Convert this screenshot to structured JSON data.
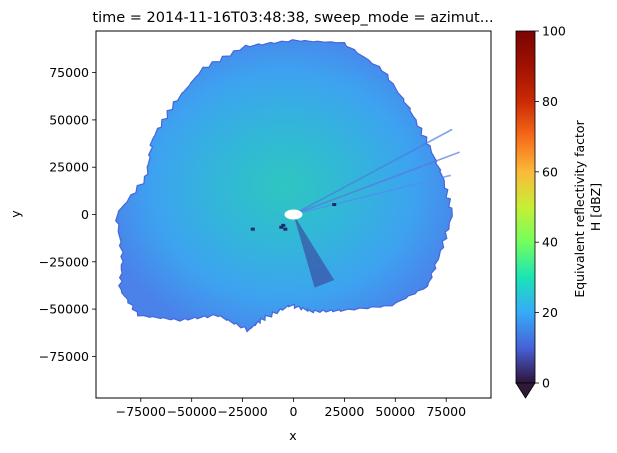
{
  "chart_data": {
    "type": "heatmap",
    "title": "time = 2014-11-16T03:48:38, sweep_mode = azimut...",
    "xlabel": "x",
    "ylabel": "y",
    "xlim": [
      -97000,
      97000
    ],
    "ylim": [
      -97000,
      97000
    ],
    "xticks": [
      -75000,
      -50000,
      -25000,
      0,
      25000,
      50000,
      75000
    ],
    "xtick_labels": [
      "−75000",
      "−50000",
      "−25000",
      "0",
      "25000",
      "50000",
      "75000"
    ],
    "yticks": [
      75000,
      50000,
      25000,
      0,
      -25000,
      -50000,
      -75000
    ],
    "ytick_labels": [
      "75000",
      "50000",
      "25000",
      "0",
      "−25000",
      "−50000",
      "−75000"
    ],
    "grid": false,
    "colorbar": {
      "label_lines": [
        "Equivalent reflectivity factor",
        "H [dBZ]"
      ],
      "range": [
        0,
        100
      ],
      "ticks": [
        0,
        20,
        40,
        60,
        80,
        100
      ],
      "tick_labels": [
        "0",
        "20",
        "40",
        "60",
        "80",
        "100"
      ],
      "colormap": "turbo",
      "extend": "min",
      "under_color": "#2f1a35"
    },
    "field": {
      "name": "Equivalent reflectivity factor H",
      "units": "dBZ",
      "typical_value_dbz": 20,
      "outline_polar_km": [
        [
          0,
          78
        ],
        [
          15,
          76
        ],
        [
          30,
          76
        ],
        [
          45,
          80
        ],
        [
          60,
          88
        ],
        [
          75,
          94
        ],
        [
          90,
          92
        ],
        [
          105,
          92
        ],
        [
          120,
          89
        ],
        [
          135,
          83
        ],
        [
          150,
          80
        ],
        [
          165,
          75
        ],
        [
          180,
          87
        ],
        [
          195,
          87
        ],
        [
          205,
          94
        ],
        [
          215,
          93
        ],
        [
          225,
          79
        ],
        [
          235,
          65
        ],
        [
          250,
          65
        ],
        [
          255,
          57
        ],
        [
          268,
          48
        ],
        [
          280,
          52
        ],
        [
          295,
          56
        ],
        [
          315,
          68
        ],
        [
          330,
          76
        ],
        [
          345,
          75
        ],
        [
          360,
          78
        ]
      ]
    }
  }
}
